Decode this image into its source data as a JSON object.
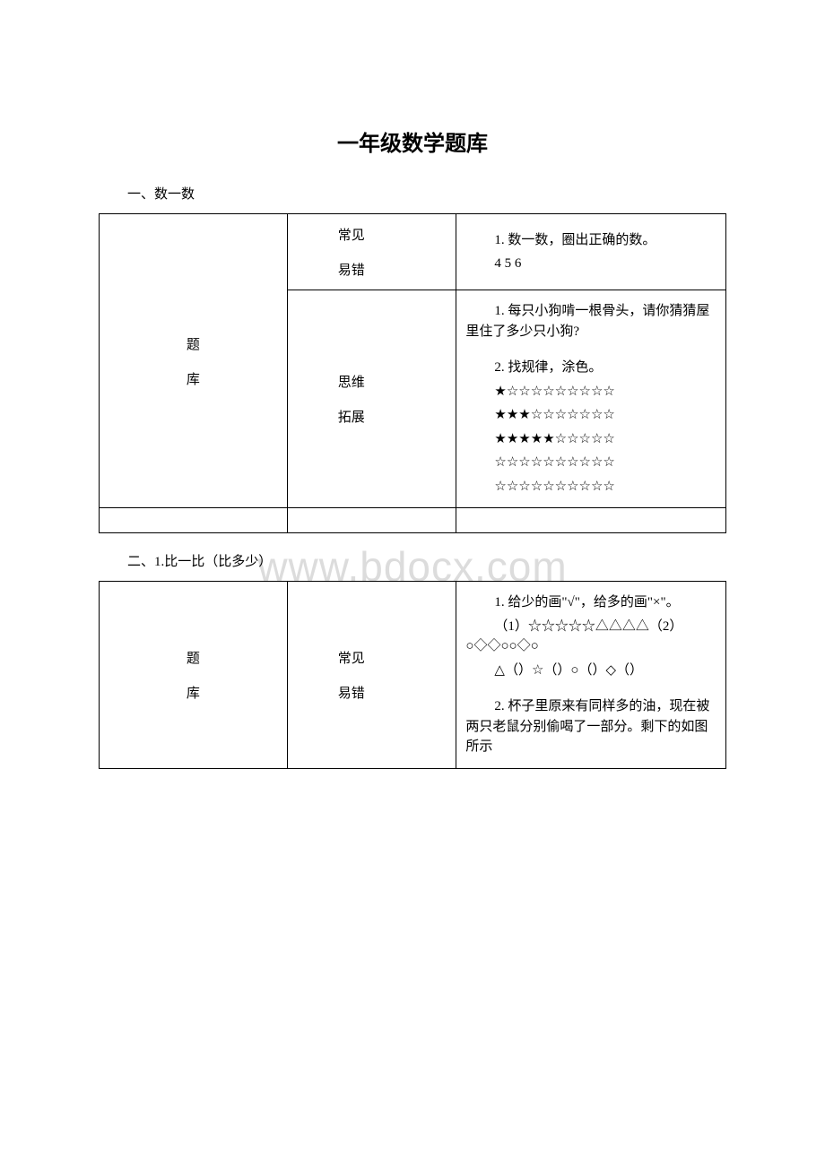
{
  "page_title": "一年级数学题库",
  "watermark": "www.bdocx.com",
  "sections": [
    {
      "heading": "一、数一数",
      "row_label_1": "题",
      "row_label_2": "库",
      "rows": [
        {
          "category_1": "常见",
          "category_2": "易错",
          "problems": [
            {
              "head": "1. 数一数，圈出正确的数。",
              "body": "4 5 6"
            }
          ]
        },
        {
          "category_1": "思维",
          "category_2": "拓展",
          "problems": [
            {
              "head": "1. 每只小狗啃一根骨头，请你猜猜屋里住了多少只小狗?"
            },
            {
              "head": "2. 找规律，涂色。",
              "lines": [
                "★☆☆☆☆☆☆☆☆☆",
                "★★★☆☆☆☆☆☆☆",
                "★★★★★☆☆☆☆☆",
                "☆☆☆☆☆☆☆☆☆☆",
                "☆☆☆☆☆☆☆☆☆☆"
              ]
            }
          ]
        }
      ],
      "has_empty_row": true
    },
    {
      "heading": "二、1.比一比（比多少）",
      "row_label_1": "题",
      "row_label_2": "库",
      "rows": [
        {
          "category_1": "常见",
          "category_2": "易错",
          "problems": [
            {
              "head": "1. 给少的画\"√\"，给多的画\"×\"。",
              "body_head": "（1）☆☆☆☆☆△△△△（2）○◇◇○○◇○",
              "body_sub": "△（）☆（）○（）◇（）"
            },
            {
              "head": "2. 杯子里原来有同样多的油，现在被两只老鼠分别偷喝了一部分。剩下的如图所示"
            }
          ]
        }
      ],
      "has_empty_row": false
    }
  ]
}
